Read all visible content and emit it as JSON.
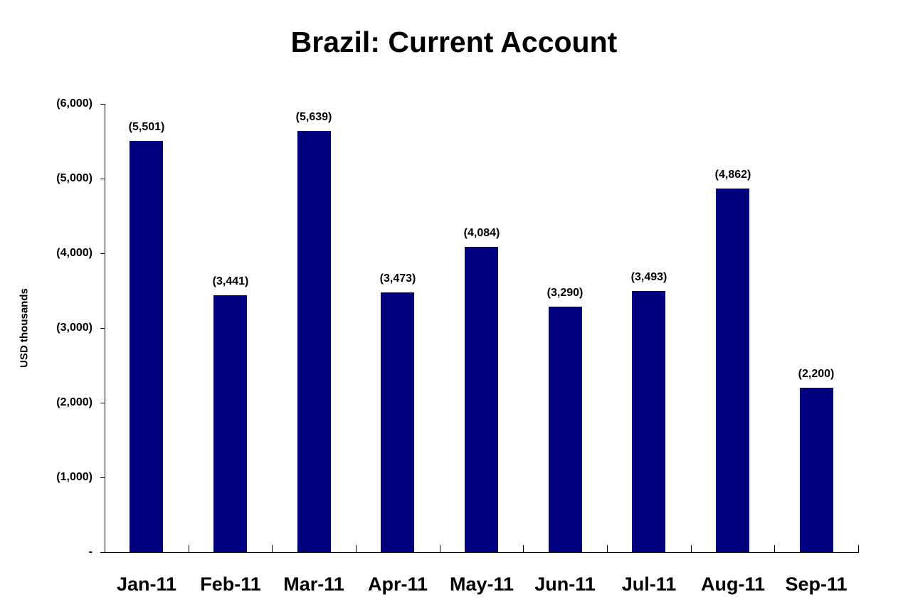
{
  "chart_data": {
    "type": "bar",
    "title": "Brazil: Current Account",
    "xlabel": "",
    "ylabel": "USD thousands",
    "categories": [
      "Jan-11",
      "Feb-11",
      "Mar-11",
      "Apr-11",
      "May-11",
      "Jun-11",
      "Jul-11",
      "Aug-11",
      "Sep-11"
    ],
    "values": [
      -5501,
      -3441,
      -5639,
      -3473,
      -4084,
      -3290,
      -3493,
      -4862,
      -2200
    ],
    "data_labels": [
      "(5,501)",
      "(3,441)",
      "(5,639)",
      "(3,473)",
      "(4,084)",
      "(3,290)",
      "(3,493)",
      "(4,862)",
      "(2,200)"
    ],
    "ylim": [
      -6000,
      0
    ],
    "y_axis_reversed": true,
    "yticks": [
      -6000,
      -5000,
      -4000,
      -3000,
      -2000,
      -1000,
      0
    ],
    "ytick_labels": [
      "(6,000)",
      "(5,000)",
      "(4,000)",
      "(3,000)",
      "(2,000)",
      "(1,000)",
      "-"
    ],
    "grid": false,
    "legend": null,
    "bar_color": "#000080"
  }
}
